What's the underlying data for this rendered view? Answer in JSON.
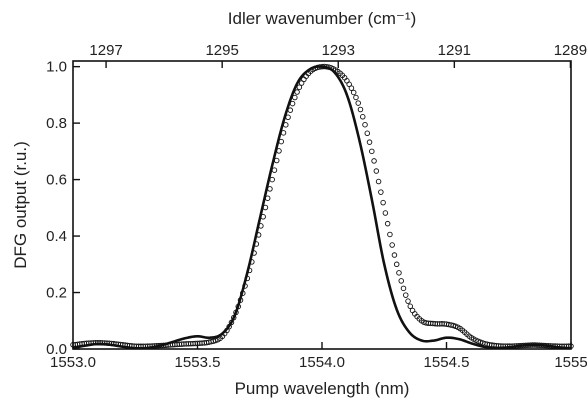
{
  "chart_data": {
    "type": "line",
    "xlabel": "Pump wavelength (nm)",
    "ylabel": "DFG output (r.u.)",
    "top_axis_label": "Idler wavenumber (cm⁻¹)",
    "xlim": [
      1553.0,
      1555.0
    ],
    "ylim": [
      0.0,
      1.02
    ],
    "top_xlim": [
      1297.57,
      1288.99
    ],
    "x_ticks": [
      1553.0,
      1553.5,
      1554.0,
      1554.5,
      1555.0
    ],
    "x_tick_labels": [
      "1553.0",
      "1553.5",
      "1554.0",
      "1554.5",
      "1555"
    ],
    "y_ticks": [
      0.0,
      0.2,
      0.4,
      0.6,
      0.8,
      1.0
    ],
    "y_tick_labels": [
      "0.0",
      "0.2",
      "0.4",
      "0.6",
      "0.8",
      "1.0"
    ],
    "top_ticks": [
      1297,
      1295,
      1293,
      1291,
      1289
    ],
    "top_tick_labels": [
      "1297",
      "1295",
      "1293",
      "1291",
      "1289"
    ],
    "grid": false,
    "legend": "none",
    "series": [
      {
        "style": "solid-line",
        "color": "#111111",
        "x": [
          1553.0,
          1553.05,
          1553.1,
          1553.15,
          1553.2,
          1553.25,
          1553.3,
          1553.35,
          1553.4,
          1553.45,
          1553.5,
          1553.55,
          1553.6,
          1553.65,
          1553.7,
          1553.75,
          1553.8,
          1553.85,
          1553.9,
          1553.95,
          1554.0,
          1554.05,
          1554.1,
          1554.15,
          1554.2,
          1554.25,
          1554.3,
          1554.35,
          1554.4,
          1554.45,
          1554.5,
          1554.55,
          1554.6,
          1554.65,
          1554.7,
          1554.75,
          1554.8,
          1554.85,
          1554.9,
          1554.95,
          1555.0
        ],
        "y": [
          0.005,
          0.012,
          0.018,
          0.015,
          0.008,
          0.003,
          0.004,
          0.012,
          0.025,
          0.038,
          0.045,
          0.04,
          0.055,
          0.12,
          0.27,
          0.46,
          0.65,
          0.82,
          0.94,
          0.99,
          1.0,
          0.98,
          0.9,
          0.74,
          0.53,
          0.3,
          0.14,
          0.06,
          0.03,
          0.03,
          0.04,
          0.035,
          0.02,
          0.008,
          0.004,
          0.006,
          0.012,
          0.015,
          0.012,
          0.006,
          0.003
        ]
      },
      {
        "style": "open-circles",
        "color": "#111111",
        "x": [
          1553.0,
          1553.05,
          1553.1,
          1553.15,
          1553.2,
          1553.25,
          1553.3,
          1553.35,
          1553.4,
          1553.45,
          1553.5,
          1553.55,
          1553.6,
          1553.65,
          1553.7,
          1553.75,
          1553.8,
          1553.85,
          1553.9,
          1553.95,
          1554.0,
          1554.05,
          1554.1,
          1554.15,
          1554.2,
          1554.25,
          1554.3,
          1554.35,
          1554.4,
          1554.45,
          1554.5,
          1554.55,
          1554.6,
          1554.65,
          1554.7,
          1554.75,
          1554.8,
          1554.85,
          1554.9,
          1554.95,
          1555.0
        ],
        "y": [
          0.015,
          0.02,
          0.022,
          0.02,
          0.015,
          0.01,
          0.01,
          0.012,
          0.015,
          0.018,
          0.02,
          0.025,
          0.045,
          0.12,
          0.25,
          0.42,
          0.6,
          0.78,
          0.91,
          0.98,
          1.0,
          0.99,
          0.95,
          0.86,
          0.7,
          0.5,
          0.3,
          0.16,
          0.1,
          0.09,
          0.088,
          0.075,
          0.04,
          0.02,
          0.012,
          0.01,
          0.012,
          0.014,
          0.012,
          0.01,
          0.01
        ]
      }
    ]
  }
}
